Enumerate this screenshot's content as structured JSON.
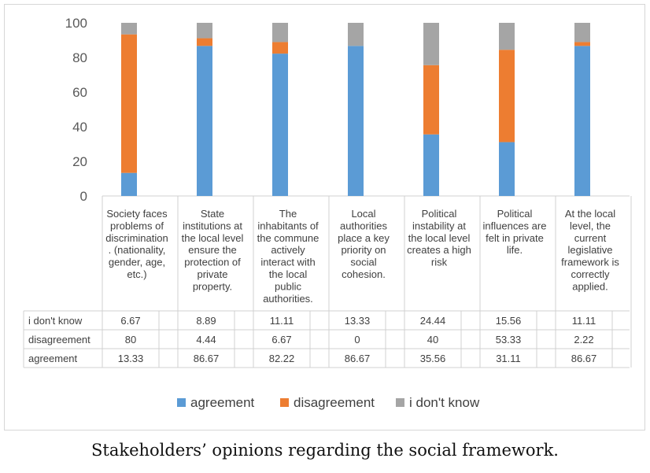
{
  "chart_data": {
    "type": "bar",
    "stacked": true,
    "ylim": [
      0,
      100
    ],
    "yticks": [
      0,
      20,
      40,
      60,
      80,
      100
    ],
    "categories": [
      "Society faces problems of discrimination. (nationality, gender, age, etc.)",
      "State institutions at the local level ensure the protection of private property.",
      "The inhabitants of the commune actively interact with the local public authorities.",
      "Local authorities place a key priority on social cohesion.",
      "Political instability at the local level creates a high risk",
      "Political influences are felt in private life.",
      "At the local level, the current legislative framework is correctly applied."
    ],
    "category_lines": [
      [
        "Society faces",
        "problems of",
        "discrimination",
        ". (nationality,",
        "gender, age,",
        "etc.)"
      ],
      [
        "State",
        "institutions at",
        "the local level",
        "ensure the",
        "protection of",
        "private",
        "property."
      ],
      [
        "The",
        "inhabitants of",
        "the commune",
        "actively",
        "interact with",
        "the local",
        "public",
        "authorities."
      ],
      [
        "Local",
        "authorities",
        "place a key",
        "priority on",
        "social",
        "cohesion."
      ],
      [
        "Political",
        "instability at",
        "the local level",
        "creates a high",
        "risk"
      ],
      [
        "Political",
        "influences are",
        "felt in private",
        "life."
      ],
      [
        "At the local",
        "level, the",
        "current",
        "legislative",
        "framework is",
        "correctly",
        "applied."
      ]
    ],
    "series": [
      {
        "name": "agreement",
        "color": "#5B9BD5",
        "values": [
          13.33,
          86.67,
          82.22,
          86.67,
          35.56,
          31.11,
          86.67
        ]
      },
      {
        "name": "disagreement",
        "color": "#ED7D31",
        "values": [
          80,
          4.44,
          6.67,
          0,
          40,
          53.33,
          2.22
        ]
      },
      {
        "name": "i don't know",
        "color": "#A5A5A5",
        "values": [
          6.67,
          8.89,
          11.11,
          13.33,
          24.44,
          15.56,
          11.11
        ]
      }
    ],
    "table": {
      "rows": [
        {
          "label": "i don't know",
          "values": [
            "6.67",
            "8.89",
            "11.11",
            "13.33",
            "24.44",
            "15.56",
            "11.11"
          ]
        },
        {
          "label": "disagreement",
          "values": [
            "80",
            "4.44",
            "6.67",
            "0",
            "40",
            "53.33",
            "2.22"
          ]
        },
        {
          "label": "agreement",
          "values": [
            "13.33",
            "86.67",
            "82.22",
            "86.67",
            "35.56",
            "31.11",
            "86.67"
          ]
        }
      ]
    },
    "legend": [
      "agreement",
      "disagreement",
      "i don't know"
    ],
    "legend_position": "bottom"
  },
  "caption": "Stakeholders’ opinions regarding the social framework."
}
